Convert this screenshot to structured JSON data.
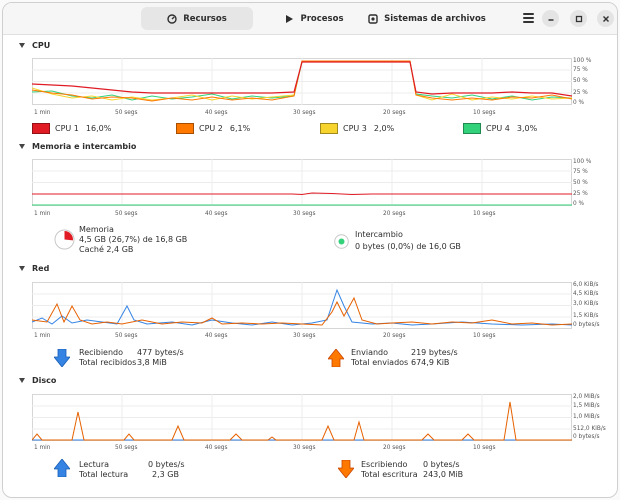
{
  "header": {
    "tabs": [
      {
        "label": "Recursos",
        "icon": "gauge-icon",
        "active": true
      },
      {
        "label": "Procesos",
        "icon": "play-icon",
        "active": false
      },
      {
        "label": "Sistemas de archivos",
        "icon": "disk-icon",
        "active": false
      }
    ],
    "menu_icon": "hamburger-icon",
    "window_controls": [
      "minimize-icon",
      "maximize-icon",
      "close-icon"
    ]
  },
  "x_axis_labels": [
    "1 min",
    "50 segs",
    "40 segs",
    "30 segs",
    "20 segs",
    "10 segs"
  ],
  "cpu": {
    "title": "CPU",
    "y_labels": [
      "100 %",
      "75 %",
      "50 %",
      "25 %",
      "0 %"
    ],
    "cores": [
      {
        "name": "CPU 1",
        "value": "16,0%",
        "color": "#e01b24"
      },
      {
        "name": "CPU 2",
        "value": "6,1%",
        "color": "#ff7800"
      },
      {
        "name": "CPU 3",
        "value": "2,0%",
        "color": "#f6d32d"
      },
      {
        "name": "CPU 4",
        "value": "3,0%",
        "color": "#33d17a"
      }
    ]
  },
  "memory": {
    "title": "Memoria e intercambio",
    "y_labels": [
      "100 %",
      "75 %",
      "50 %",
      "25 %",
      "0 %"
    ],
    "memory_label": "Memoria",
    "memory_value": "4,5 GB (26,7%) de 16,8 GB",
    "cache_value": "Caché 2,4 GB",
    "memory_color": "#e01b24",
    "swap_label": "Intercambio",
    "swap_value": "0 bytes (0,0%) de 16,0 GB",
    "swap_color": "#33d17a",
    "memory_percent": 26.7,
    "swap_percent": 0.0
  },
  "network": {
    "title": "Red",
    "y_labels": [
      "6,0 KiB/s",
      "4,5 KiB/s",
      "3,0 KiB/s",
      "1,5 KiB/s",
      "0 bytes/s"
    ],
    "receiving_label": "Recibiendo",
    "receiving_value": "477 bytes/s",
    "total_received_label": "Total recibidos",
    "total_received_value": "3,8 MiB",
    "sending_label": "Enviando",
    "sending_value": "219 bytes/s",
    "total_sent_label": "Total enviados",
    "total_sent_value": "674,9 KiB",
    "receive_color": "#3584e4",
    "send_color": "#e66100"
  },
  "disk": {
    "title": "Disco",
    "y_labels": [
      "2,0 MiB/s",
      "1,5 MiB/s",
      "1,0 MiB/s",
      "512,0 KiB/s",
      "0 bytes/s"
    ],
    "read_label": "Lectura",
    "read_value": "0 bytes/s",
    "total_read_label": "Total lectura",
    "total_read_value": "2,3 GB",
    "write_label": "Escribiendo",
    "write_value": "0 bytes/s",
    "total_write_label": "Total escritura",
    "total_write_value": "243,0 MiB",
    "read_color": "#3584e4",
    "write_color": "#e66100"
  }
}
